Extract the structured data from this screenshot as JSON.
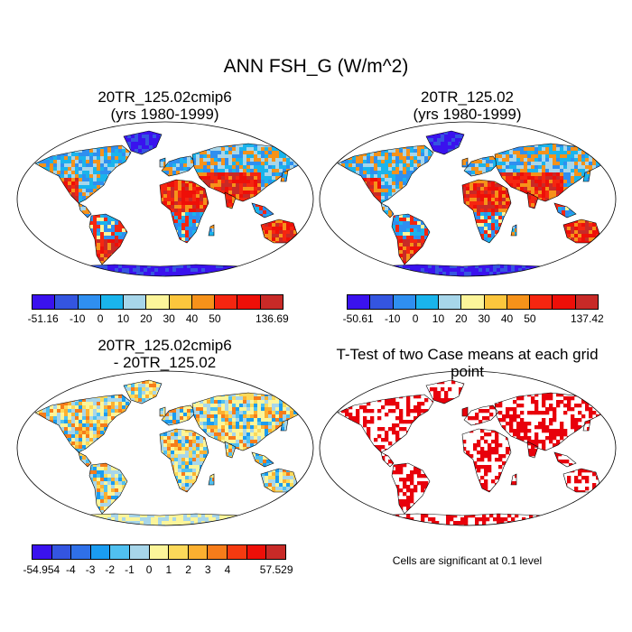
{
  "title": "ANN FSH_G (W/m^2)",
  "panels": {
    "top_left": {
      "title_line1": "20TR_125.02cmip6",
      "title_line2": "(yrs 1980-1999)"
    },
    "top_right": {
      "title_line1": "20TR_125.02",
      "title_line2": "(yrs 1980-1999)"
    },
    "bottom_left": {
      "title_line1": "20TR_125.02cmip6",
      "title_line2": "- 20TR_125.02"
    },
    "bottom_right": {
      "title": "T-Test of two Case means at each grid point",
      "note": "Cells are significant at 0.1 level"
    }
  },
  "colorbars": {
    "model": {
      "colors": [
        "#3a12ee",
        "#3455e0",
        "#2f8ff0",
        "#1ab4ec",
        "#a7d6ea",
        "#fcf59a",
        "#fcc63d",
        "#f6921a",
        "#f52610",
        "#ee0f08",
        "#c82a27"
      ],
      "labels": [
        "-51.16",
        "-10",
        "0",
        "10",
        "20",
        "30",
        "40",
        "50",
        "136.69"
      ]
    },
    "control": {
      "labels": [
        "-50.61",
        "-10",
        "0",
        "10",
        "20",
        "30",
        "40",
        "50",
        "137.42"
      ]
    },
    "diff": {
      "colors": [
        "#3a12ee",
        "#3455e0",
        "#2f70e8",
        "#1a9cf0",
        "#50c0f0",
        "#a7d6ea",
        "#fcf59a",
        "#fcd95a",
        "#fcb030",
        "#f67c1a",
        "#f53a10",
        "#ee0f08",
        "#c82a27"
      ],
      "labels": [
        "-54.954",
        "-4",
        "-3",
        "-2",
        "-1",
        "0",
        "1",
        "2",
        "3",
        "4",
        "57.529"
      ]
    }
  },
  "map_palette": {
    "ocean": "#ffffff",
    "coast": "#000000",
    "significant": "#e8000b"
  }
}
